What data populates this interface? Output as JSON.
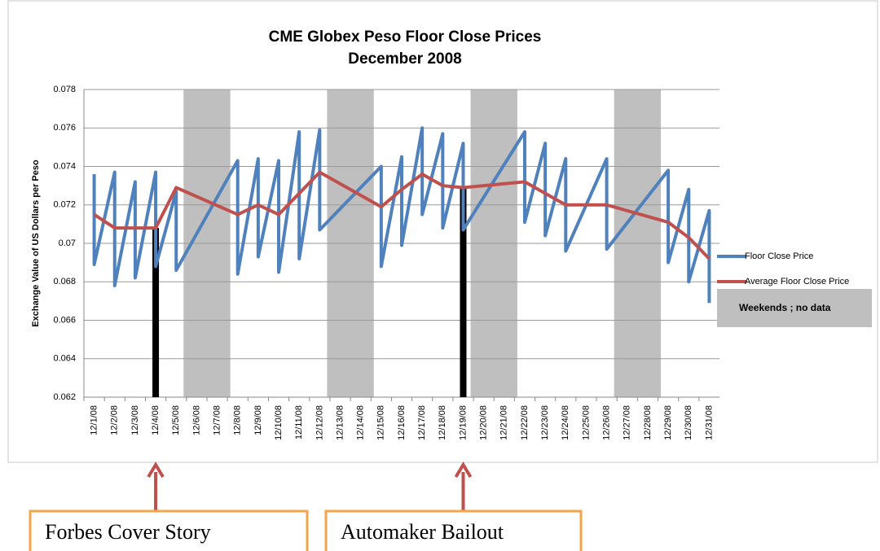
{
  "chart_data": {
    "type": "line",
    "title": "CME Globex Peso Floor Close Prices",
    "subtitle": "December 2008",
    "y_label": "Exchange Value of US Dollars per Peso",
    "categories": [
      "12/1/08",
      "12/2/08",
      "12/3/08",
      "12/4/08",
      "12/5/08",
      "12/6/08",
      "12/7/08",
      "12/8/08",
      "12/9/08",
      "12/10/08",
      "12/11/08",
      "12/12/08",
      "12/13/08",
      "12/14/08",
      "12/15/08",
      "12/16/08",
      "12/17/08",
      "12/18/08",
      "12/19/08",
      "12/20/08",
      "12/21/08",
      "12/22/08",
      "12/23/08",
      "12/24/08",
      "12/25/08",
      "12/26/08",
      "12/27/08",
      "12/28/08",
      "12/29/08",
      "12/30/08",
      "12/31/08"
    ],
    "ylim": [
      0.062,
      0.078
    ],
    "yticks": [
      0.062,
      0.064,
      0.066,
      0.068,
      0.07,
      0.072,
      0.074,
      0.076,
      0.078
    ],
    "grid": true,
    "legend": "right",
    "series": [
      {
        "name": "Floor Close Price",
        "type": "line",
        "color": "#4f81bd",
        "x": [
          "12/1/08",
          "12/1/08",
          "12/2/08",
          "12/2/08",
          "12/3/08",
          "12/3/08",
          "12/4/08",
          "12/4/08",
          "12/5/08",
          "12/5/08",
          "12/8/08",
          "12/8/08",
          "12/9/08",
          "12/9/08",
          "12/10/08",
          "12/10/08",
          "12/11/08",
          "12/11/08",
          "12/12/08",
          "12/12/08",
          "12/15/08",
          "12/15/08",
          "12/16/08",
          "12/16/08",
          "12/17/08",
          "12/17/08",
          "12/18/08",
          "12/18/08",
          "12/19/08",
          "12/19/08",
          "12/22/08",
          "12/22/08",
          "12/23/08",
          "12/23/08",
          "12/24/08",
          "12/24/08",
          "12/26/08",
          "12/26/08",
          "12/29/08",
          "12/29/08",
          "12/30/08",
          "12/30/08",
          "12/31/08",
          "12/31/08"
        ],
        "values": [
          0.0736,
          0.0689,
          0.0737,
          0.0678,
          0.0732,
          0.0682,
          0.0737,
          0.0688,
          0.0727,
          0.0686,
          0.0743,
          0.0684,
          0.0744,
          0.0693,
          0.0743,
          0.0685,
          0.0758,
          0.0692,
          0.0759,
          0.0707,
          0.074,
          0.0688,
          0.0745,
          0.0699,
          0.076,
          0.0715,
          0.0757,
          0.0708,
          0.0752,
          0.0707,
          0.0758,
          0.0711,
          0.0752,
          0.0704,
          0.0744,
          0.0696,
          0.0744,
          0.0697,
          0.0738,
          0.069,
          0.0728,
          0.068,
          0.0717,
          0.0669
        ]
      },
      {
        "name": "Average Floor Close Price",
        "type": "line",
        "color": "#c0504d",
        "x": [
          "12/1/08",
          "12/2/08",
          "12/3/08",
          "12/4/08",
          "12/5/08",
          "12/8/08",
          "12/9/08",
          "12/10/08",
          "12/11/08",
          "12/12/08",
          "12/15/08",
          "12/16/08",
          "12/17/08",
          "12/18/08",
          "12/19/08",
          "12/22/08",
          "12/23/08",
          "12/24/08",
          "12/26/08",
          "12/29/08",
          "12/30/08",
          "12/31/08"
        ],
        "values": [
          0.0715,
          0.0708,
          0.0708,
          0.0708,
          0.0729,
          0.0715,
          0.072,
          0.0715,
          0.0726,
          0.0737,
          0.0719,
          0.0728,
          0.0736,
          0.073,
          0.0729,
          0.0732,
          0.0726,
          0.072,
          0.072,
          0.0711,
          0.0703,
          0.0692
        ]
      },
      {
        "name": "Weekends ; no data",
        "type": "bar",
        "color": "#bfbfbf",
        "values": [
          null,
          null,
          null,
          null,
          null,
          0.078,
          0.078,
          null,
          null,
          null,
          null,
          null,
          0.078,
          0.078,
          null,
          null,
          null,
          null,
          null,
          0.078,
          0.078,
          null,
          null,
          null,
          null,
          null,
          0.078,
          0.078,
          null,
          null,
          null
        ]
      }
    ],
    "annotations": [
      {
        "text": "Forbes Cover Story",
        "x": "12/4/08",
        "value": 0.0708
      },
      {
        "text": "Automaker Bailout",
        "x": "12/19/08",
        "value": 0.0729
      }
    ]
  }
}
